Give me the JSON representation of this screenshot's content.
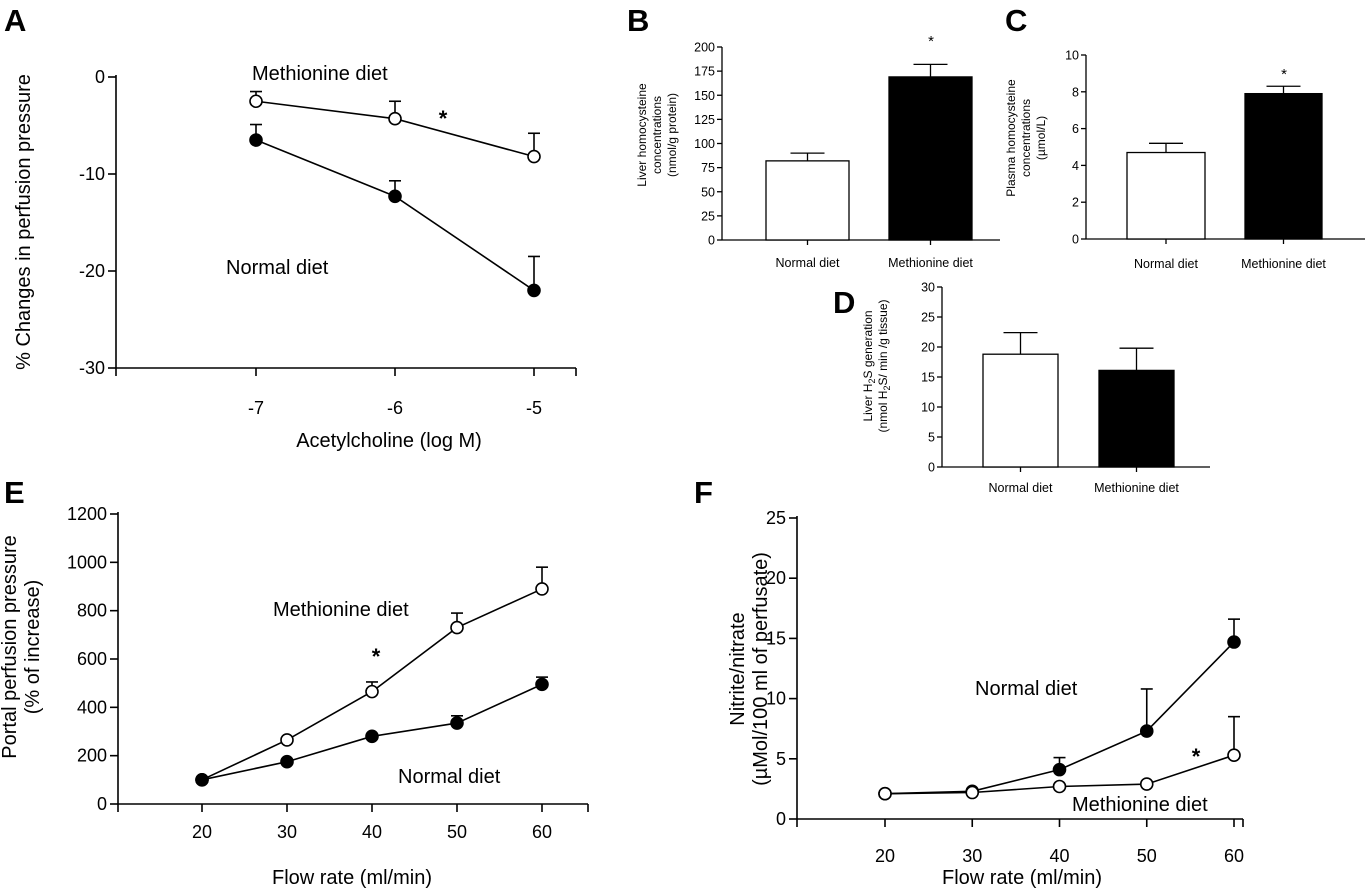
{
  "chart_data": [
    {
      "panel": "A",
      "type": "line",
      "xlabel": "Acetylcholine (log M)",
      "ylabel": "% Changes in perfusion pressure",
      "x": [
        -7,
        -6,
        -5
      ],
      "xticks": [
        "-7",
        "-6",
        "-5"
      ],
      "ylim": [
        -30,
        0
      ],
      "yticks": [
        "0",
        "-10",
        "-20",
        "-30"
      ],
      "grid": false,
      "series": [
        {
          "name": "Methionine diet",
          "marker": "open-circle",
          "values": [
            -2.5,
            -4.3,
            -8.2
          ],
          "error": [
            1.0,
            1.8,
            2.4
          ]
        },
        {
          "name": "Normal diet",
          "marker": "filled-circle",
          "values": [
            -6.5,
            -12.3,
            -22.0
          ],
          "error": [
            1.6,
            1.6,
            3.5
          ]
        }
      ],
      "annotations": [
        "*"
      ]
    },
    {
      "panel": "B",
      "type": "bar",
      "ylabel": "Liver homocysteine concentrations (nmol/g protein)",
      "ylabel_lines": [
        "Liver homocysteine",
        "concentrations",
        "(nmol/g protein)"
      ],
      "categories": [
        "Normal diet",
        "Methionine diet"
      ],
      "values": [
        82,
        169
      ],
      "error": [
        8,
        13
      ],
      "bar_colors": [
        "#ffffff",
        "#000000"
      ],
      "ylim": [
        0,
        200
      ],
      "yticks": [
        "0",
        "25",
        "50",
        "75",
        "100",
        "125",
        "150",
        "175",
        "200"
      ],
      "annotations": [
        "*"
      ]
    },
    {
      "panel": "C",
      "type": "bar",
      "ylabel": "Plasma homocysteine concentrations (µmol/L)",
      "ylabel_lines": [
        "Plasma homocysteine",
        "concentrations",
        "(µmol/L)"
      ],
      "categories": [
        "Normal diet",
        "Methionine diet"
      ],
      "values": [
        4.7,
        7.9
      ],
      "error": [
        0.5,
        0.4
      ],
      "bar_colors": [
        "#ffffff",
        "#000000"
      ],
      "ylim": [
        0,
        10
      ],
      "yticks": [
        "0",
        "2",
        "4",
        "6",
        "8",
        "10"
      ],
      "annotations": [
        "*"
      ]
    },
    {
      "panel": "D",
      "type": "bar",
      "ylabel": "Liver H2S generation (nmol H2S/ min /g tissue)",
      "ylabel_lines": [
        "Liver H2S  generation",
        "(nmol H2S/ min /g tissue)"
      ],
      "categories": [
        "Normal diet",
        "Methionine diet"
      ],
      "values": [
        18.8,
        16.1
      ],
      "error": [
        3.6,
        3.7
      ],
      "bar_colors": [
        "#ffffff",
        "#000000"
      ],
      "ylim": [
        0,
        30
      ],
      "yticks": [
        "0",
        "5",
        "10",
        "15",
        "20",
        "25",
        "30"
      ]
    },
    {
      "panel": "E",
      "type": "line",
      "xlabel": "Flow rate (ml/min)",
      "ylabel": "Portal perfusion pressure (% of increase)",
      "ylabel_lines": [
        "Portal perfusion pressure",
        "(% of increase)"
      ],
      "x": [
        20,
        30,
        40,
        50,
        60
      ],
      "xticks": [
        "20",
        "30",
        "40",
        "50",
        "60"
      ],
      "ylim": [
        0,
        1200
      ],
      "yticks": [
        "0",
        "200",
        "400",
        "600",
        "800",
        "1000",
        "1200"
      ],
      "grid": false,
      "series": [
        {
          "name": "Methionine diet",
          "marker": "open-circle",
          "values": [
            100,
            265,
            465,
            730,
            890
          ],
          "error": [
            0,
            0,
            40,
            60,
            90
          ]
        },
        {
          "name": "Normal diet",
          "marker": "filled-circle",
          "values": [
            100,
            175,
            280,
            335,
            495
          ],
          "error": [
            0,
            0,
            0,
            30,
            30
          ]
        }
      ],
      "annotations": [
        "*"
      ]
    },
    {
      "panel": "F",
      "type": "line",
      "xlabel": "Flow rate (ml/min)",
      "ylabel": "Nitrite/nitrate (µMol/100 ml of perfusate)",
      "ylabel_lines": [
        "Nitrite/nitrate",
        "(µMol/100 ml of perfusate)"
      ],
      "x": [
        20,
        30,
        40,
        50,
        60
      ],
      "xticks": [
        "20",
        "30",
        "40",
        "50",
        "60"
      ],
      "ylim": [
        0,
        25
      ],
      "yticks": [
        "0",
        "5",
        "10",
        "15",
        "20",
        "25"
      ],
      "grid": false,
      "series": [
        {
          "name": "Normal diet",
          "marker": "filled-circle",
          "values": [
            2.1,
            2.3,
            4.1,
            7.3,
            14.7
          ],
          "error": [
            0,
            0,
            1.0,
            3.5,
            1.9
          ]
        },
        {
          "name": "Methionine diet",
          "marker": "open-circle",
          "values": [
            2.1,
            2.2,
            2.7,
            2.9,
            5.3
          ],
          "error": [
            0,
            0,
            0,
            0,
            3.2
          ]
        }
      ],
      "annotations": [
        "*"
      ]
    }
  ]
}
